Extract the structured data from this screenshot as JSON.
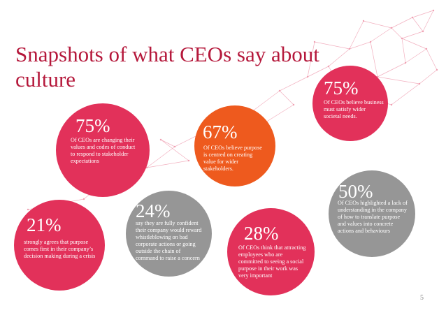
{
  "slide": {
    "title": "Snapshots of what CEOs say about culture",
    "page_number": "5"
  },
  "colors": {
    "pink": "#e2315a",
    "orange": "#ee5a1e",
    "grey": "#969696",
    "title": "#b5183b"
  },
  "stats": [
    {
      "percent": "75%",
      "text": "Of CEOs are changing their values and codes of conduct to respond to stakeholder expectations"
    },
    {
      "percent": "21%",
      "text": "strongly agrees that purpose comes first in their company’s decision making during a crisis"
    },
    {
      "percent": "24%",
      "text": "say they are fully confident their company would reward whistleblowing on bad corporate actions or going outside the chain of command to raise a concern"
    },
    {
      "percent": "67%",
      "text": "Of CEOs believe purpose is centred on creating value for wider stakeholders."
    },
    {
      "percent": "28%",
      "text": "Of CEOs think that attracting employees who are committed to seeing a social purpose in their work was very important"
    },
    {
      "percent": "75%",
      "text": "Of CEOs believe business must satisfy wider societal needs."
    },
    {
      "percent": "50%",
      "text": "Of CEOs highlighted a lack of understanding in the company of how to translate purpose and values into concrete actions and behaviours"
    }
  ]
}
